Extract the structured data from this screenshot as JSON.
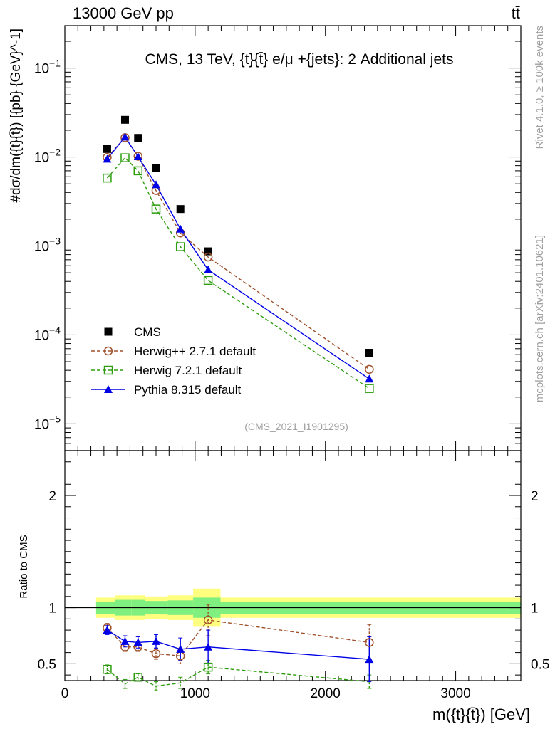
{
  "header": {
    "energy_label": "13000 GeV pp",
    "process_label": "tt̄"
  },
  "side": {
    "rivet_label": "Rivet 4.1.0, ≥ 100k events",
    "mcplots_label": "mcplots.cern.ch [arXiv:2401.10621]"
  },
  "colors": {
    "cms": "#000000",
    "herwigpp": "#a0522d",
    "herwig7": "#2e9e0f",
    "pythia": "#0000e6",
    "band_inner": "#7ff07f",
    "band_outer": "#ffff7f"
  },
  "chart_data": [
    {
      "type": "scatter",
      "yscale": "log",
      "title": "CMS, 13 TeV, {t}{t̄} e/μ +{jets}: 2 Additional jets",
      "ylabel": "#dσ/dm({t}{t̄}) [{pb} {GeV}^-1]",
      "analysis_label": "(CMS_2021_I1901295)",
      "xlim": [
        0,
        3500
      ],
      "ylim": [
        5e-06,
        0.3
      ],
      "ytick_labels": [
        "10^−5",
        "10^−4",
        "10^−3",
        "10^−2",
        "10^−1"
      ],
      "x": [
        325,
        462,
        562,
        700,
        887,
        1100,
        2337
      ],
      "series": [
        {
          "name": "CMS",
          "style": "square-filled",
          "values": [
            0.0123,
            0.0262,
            0.0164,
            0.0075,
            0.0026,
            0.00087,
            6.3e-05
          ]
        },
        {
          "name": "Herwig++ 2.7.1 default",
          "style": "circle-open-dashed",
          "values": [
            0.0099,
            0.0165,
            0.0102,
            0.0042,
            0.0014,
            0.00075,
            4.1e-05
          ]
        },
        {
          "name": "Herwig 7.2.1 default",
          "style": "square-open-dashed",
          "values": [
            0.0058,
            0.0098,
            0.007,
            0.0026,
            0.00098,
            0.00041,
            2.5e-05
          ]
        },
        {
          "name": "Pythia 8.315 default",
          "style": "triangle-filled-solid",
          "values": [
            0.0095,
            0.0168,
            0.0101,
            0.0049,
            0.00155,
            0.00054,
            3.2e-05
          ]
        }
      ]
    },
    {
      "type": "line",
      "ylabel": "Ratio to CMS",
      "xlabel": "m({t}{t̄}) [GeV]",
      "xlim": [
        0,
        3500
      ],
      "ylim": [
        0.35,
        2.4
      ],
      "xtick_labels": [
        "0",
        "1000",
        "2000",
        "3000"
      ],
      "ytick_labels": [
        "0.5",
        "1",
        "2"
      ],
      "x": [
        325,
        462,
        562,
        700,
        887,
        1100,
        2337
      ],
      "series": [
        {
          "name": "Herwig++ 2.7.1 default",
          "values": [
            0.82,
            0.65,
            0.65,
            0.59,
            0.57,
            0.89,
            0.69
          ],
          "errors": [
            0.04,
            0.04,
            0.04,
            0.05,
            0.07,
            0.14,
            0.16
          ]
        },
        {
          "name": "Herwig 7.2.1 default",
          "values": [
            0.45,
            0.32,
            0.38,
            0.3,
            0.33,
            0.47,
            0.34
          ],
          "errors": [
            0.04,
            0.04,
            0.03,
            0.04,
            0.05,
            0.06,
            0.06
          ]
        },
        {
          "name": "Pythia 8.315 default",
          "values": [
            0.8,
            0.7,
            0.69,
            0.7,
            0.63,
            0.65,
            0.54
          ],
          "errors": [
            0.04,
            0.05,
            0.05,
            0.06,
            0.1,
            0.15,
            0.2
          ]
        }
      ],
      "bands": {
        "edges": [
          240,
          385,
          510,
          615,
          790,
          985,
          1195,
          3500
        ],
        "inner": [
          0.055,
          0.07,
          0.07,
          0.06,
          0.065,
          0.09,
          0.055
        ],
        "outer": [
          0.09,
          0.11,
          0.11,
          0.1,
          0.11,
          0.17,
          0.09
        ]
      }
    }
  ]
}
